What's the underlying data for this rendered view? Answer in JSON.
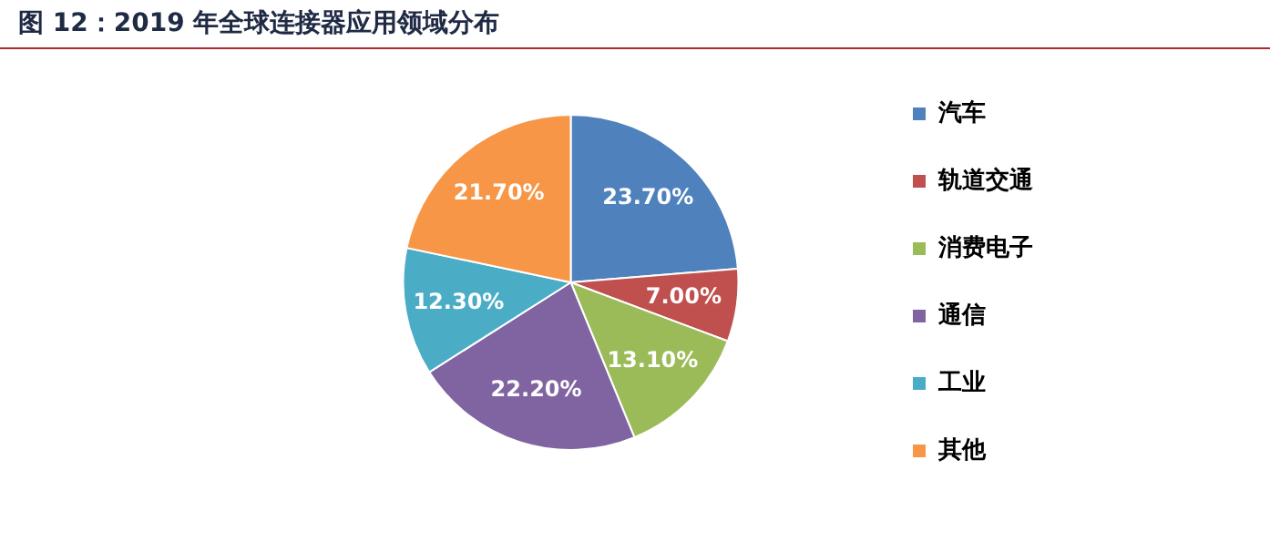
{
  "chart_data": {
    "type": "pie",
    "title": "图 12：2019 年全球连接器应用领域分布",
    "categories": [
      "汽车",
      "轨道交通",
      "消费电子",
      "通信",
      "工业",
      "其他"
    ],
    "values": [
      23.7,
      7.0,
      13.1,
      22.2,
      12.3,
      21.7
    ],
    "value_labels": [
      "23.70%",
      "7.00%",
      "13.10%",
      "22.20%",
      "12.30%",
      "21.70%"
    ],
    "colors": [
      "#4f81bd",
      "#c0504d",
      "#9bbb59",
      "#8064a2",
      "#4bacc6",
      "#f79646"
    ],
    "legend": "right"
  }
}
